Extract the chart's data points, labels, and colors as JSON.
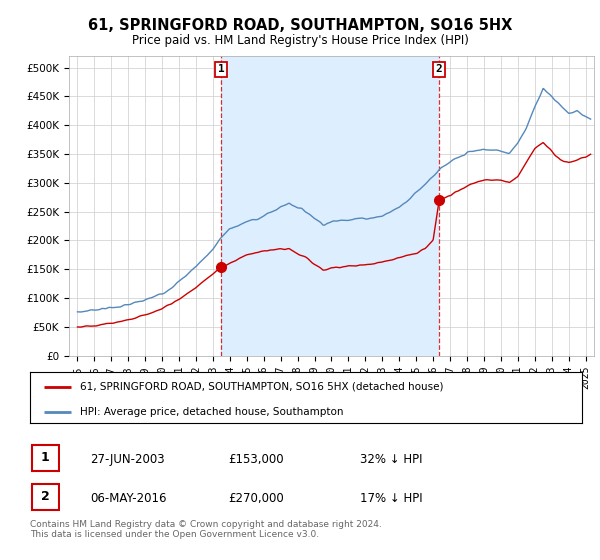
{
  "title": "61, SPRINGFORD ROAD, SOUTHAMPTON, SO16 5HX",
  "subtitle": "Price paid vs. HM Land Registry's House Price Index (HPI)",
  "ylabel_ticks": [
    "£0",
    "£50K",
    "£100K",
    "£150K",
    "£200K",
    "£250K",
    "£300K",
    "£350K",
    "£400K",
    "£450K",
    "£500K"
  ],
  "ytick_values": [
    0,
    50000,
    100000,
    150000,
    200000,
    250000,
    300000,
    350000,
    400000,
    450000,
    500000
  ],
  "ylim": [
    0,
    520000
  ],
  "xlim_start": 1994.5,
  "xlim_end": 2025.5,
  "xtick_years": [
    1995,
    1996,
    1997,
    1998,
    1999,
    2000,
    2001,
    2002,
    2003,
    2004,
    2005,
    2006,
    2007,
    2008,
    2009,
    2010,
    2011,
    2012,
    2013,
    2014,
    2015,
    2016,
    2017,
    2018,
    2019,
    2020,
    2021,
    2022,
    2023,
    2024,
    2025
  ],
  "sale1_x": 2003.49,
  "sale1_y": 153000,
  "sale1_label": "1",
  "sale2_x": 2016.36,
  "sale2_y": 270000,
  "sale2_label": "2",
  "sale1_date": "27-JUN-2003",
  "sale1_price": "£153,000",
  "sale1_hpi": "32% ↓ HPI",
  "sale2_date": "06-MAY-2016",
  "sale2_price": "£270,000",
  "sale2_hpi": "17% ↓ HPI",
  "legend_line1": "61, SPRINGFORD ROAD, SOUTHAMPTON, SO16 5HX (detached house)",
  "legend_line2": "HPI: Average price, detached house, Southampton",
  "footer": "Contains HM Land Registry data © Crown copyright and database right 2024.\nThis data is licensed under the Open Government Licence v3.0.",
  "red_color": "#cc0000",
  "blue_color": "#5588bb",
  "shade_color": "#ddeeff",
  "dashed_color": "#cc0000",
  "background_color": "#ffffff",
  "grid_color": "#cccccc"
}
